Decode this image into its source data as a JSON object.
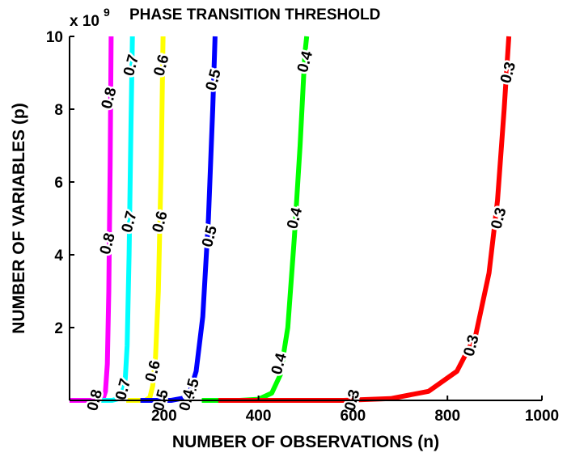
{
  "chart_data": {
    "type": "line",
    "title": "PHASE TRANSITION THRESHOLD",
    "xlabel": "NUMBER OF OBSERVATIONS (n)",
    "ylabel": "NUMBER OF VARIABLES (p)",
    "y_multiplier_label": "x 10",
    "y_multiplier_exponent": "9",
    "xlim": [
      0,
      1000
    ],
    "ylim": [
      0,
      10
    ],
    "x_ticks": [
      "200",
      "400",
      "600",
      "800",
      "1000"
    ],
    "y_ticks": [
      "2",
      "4",
      "6",
      "8",
      "10"
    ],
    "grid": false,
    "series": [
      {
        "label": "0.8",
        "color": "#ff00ff",
        "points": [
          [
            0,
            0
          ],
          [
            55,
            0
          ],
          [
            66,
            0.02
          ],
          [
            72,
            0.08
          ],
          [
            76,
            0.25
          ],
          [
            80,
            1.0
          ],
          [
            83,
            3.0
          ],
          [
            86,
            6.5
          ],
          [
            88,
            10
          ]
        ],
        "label_positions": [
          [
            55,
            0
          ],
          [
            82,
            4.3
          ],
          [
            85,
            8.3
          ]
        ]
      },
      {
        "label": "0.7",
        "color": "#00ffff",
        "points": [
          [
            55,
            0
          ],
          [
            90,
            0
          ],
          [
            104,
            0.05
          ],
          [
            112,
            0.2
          ],
          [
            118,
            0.6
          ],
          [
            122,
            1.5
          ],
          [
            126,
            4.0
          ],
          [
            130,
            7.5
          ],
          [
            133,
            10
          ]
        ],
        "label_positions": [
          [
            115,
            0.3
          ],
          [
            128,
            4.9
          ],
          [
            132,
            9.2
          ]
        ]
      },
      {
        "label": "0.6",
        "color": "#ffff00",
        "points": [
          [
            120,
            0
          ],
          [
            160,
            0
          ],
          [
            170,
            0.08
          ],
          [
            176,
            0.4
          ],
          [
            182,
            1.2
          ],
          [
            188,
            3.0
          ],
          [
            194,
            6.5
          ],
          [
            198,
            10
          ]
        ],
        "label_positions": [
          [
            178,
            0.8
          ],
          [
            193,
            4.9
          ],
          [
            196,
            9.2
          ]
        ]
      },
      {
        "label": "0.5",
        "color": "#0000ff",
        "points": [
          [
            150,
            0
          ],
          [
            215,
            0
          ],
          [
            240,
            0.06
          ],
          [
            254,
            0.2
          ],
          [
            268,
            0.8
          ],
          [
            282,
            2.3
          ],
          [
            294,
            5.0
          ],
          [
            303,
            8.0
          ],
          [
            308,
            10
          ]
        ],
        "label_positions": [
          [
            195,
            0
          ],
          [
            260,
            0.3
          ],
          [
            298,
            4.5
          ],
          [
            306,
            8.8
          ]
        ]
      },
      {
        "label": "0.4",
        "color": "#00ff00",
        "points": [
          [
            280,
            0
          ],
          [
            360,
            0
          ],
          [
            400,
            0.03
          ],
          [
            428,
            0.2
          ],
          [
            446,
            0.7
          ],
          [
            462,
            2.0
          ],
          [
            476,
            4.5
          ],
          [
            488,
            7.0
          ],
          [
            498,
            9.5
          ],
          [
            502,
            10
          ]
        ],
        "label_positions": [
          [
            250,
            0
          ],
          [
            445,
            1.0
          ],
          [
            478,
            5.0
          ],
          [
            500,
            9.3
          ]
        ]
      },
      {
        "label": "0.3",
        "color": "#ff0000",
        "points": [
          [
            315,
            0
          ],
          [
            580,
            0
          ],
          [
            680,
            0.05
          ],
          [
            760,
            0.25
          ],
          [
            820,
            0.8
          ],
          [
            860,
            1.8
          ],
          [
            888,
            3.5
          ],
          [
            906,
            5.5
          ],
          [
            920,
            8.0
          ],
          [
            930,
            10
          ]
        ],
        "label_positions": [
          [
            600,
            0
          ],
          [
            852,
            1.5
          ],
          [
            910,
            5.0
          ],
          [
            930,
            9.0
          ]
        ]
      }
    ]
  }
}
